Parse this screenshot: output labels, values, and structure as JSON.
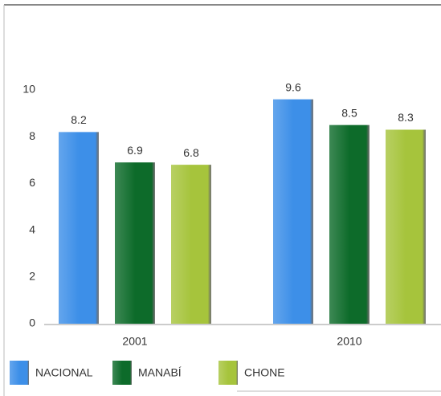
{
  "chart_data": {
    "type": "bar",
    "categories": [
      "2001",
      "2010"
    ],
    "series": [
      {
        "name": "NACIONAL",
        "color": "#3d8fe8",
        "values": [
          8.2,
          9.6
        ]
      },
      {
        "name": "MANABÍ",
        "color": "#0d6b2a",
        "values": [
          6.9,
          8.5
        ]
      },
      {
        "name": "CHONE",
        "color": "#a6c43c",
        "values": [
          6.8,
          8.3
        ]
      }
    ],
    "ylim": [
      0,
      10
    ],
    "yticks": [
      0,
      2,
      4,
      6,
      8,
      10
    ],
    "legend": "bottom"
  }
}
